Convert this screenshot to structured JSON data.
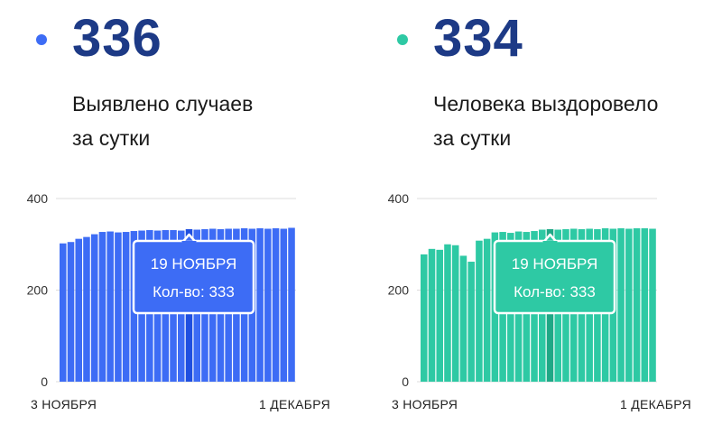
{
  "chart_data": [
    {
      "type": "bar",
      "headline_value": "336",
      "caption_line1": "Выявлено случаев",
      "caption_line2": "за сутки",
      "color": "#3d6cf5",
      "highlight_color": "#1f4fe0",
      "yticks": [
        "0",
        "200",
        "400"
      ],
      "ylim": [
        0,
        400
      ],
      "x_start_label": "3 НОЯБРЯ",
      "x_end_label": "1 ДЕКАБРЯ",
      "tooltip": {
        "date": "19 НОЯБРЯ",
        "value_text": "Кол-во: 333"
      },
      "highlight_index": 16,
      "values": [
        302,
        305,
        312,
        316,
        322,
        327,
        328,
        326,
        327,
        329,
        330,
        331,
        330,
        331,
        331,
        330,
        333,
        332,
        333,
        334,
        333,
        334,
        334,
        335,
        334,
        335,
        334,
        335,
        334,
        336
      ]
    },
    {
      "type": "bar",
      "headline_value": "334",
      "caption_line1": "Человека выздоровело",
      "caption_line2": "за сутки",
      "color": "#2ec9a4",
      "highlight_color": "#1fa886",
      "yticks": [
        "0",
        "200",
        "400"
      ],
      "ylim": [
        0,
        400
      ],
      "x_start_label": "3 НОЯБРЯ",
      "x_end_label": "1 ДЕКАБРЯ",
      "tooltip": {
        "date": "19 НОЯБРЯ",
        "value_text": "Кол-во: 333"
      },
      "highlight_index": 16,
      "values": [
        278,
        290,
        288,
        300,
        298,
        275,
        262,
        308,
        312,
        326,
        327,
        325,
        328,
        327,
        329,
        332,
        333,
        332,
        333,
        334,
        333,
        334,
        333,
        335,
        334,
        335,
        334,
        335,
        335,
        334
      ]
    }
  ]
}
